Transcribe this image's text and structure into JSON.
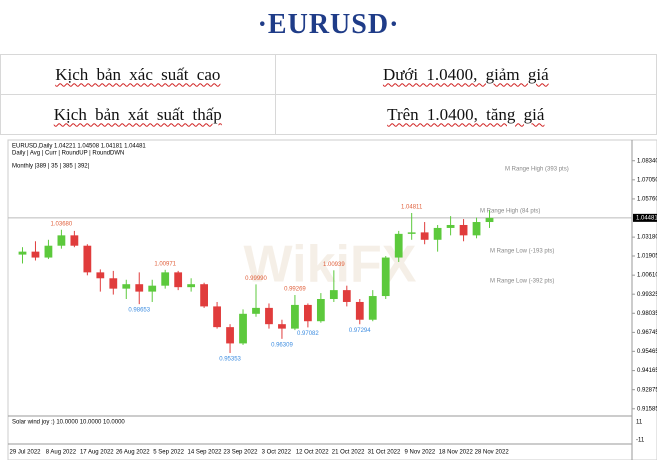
{
  "header": {
    "title": "·EURUSD·"
  },
  "table": {
    "rows": [
      [
        "Kịch bản xác suất cao",
        "Dưới 1.0400, giảm giá"
      ],
      [
        "Kịch bản xát suất thấp",
        "Trên 1.0400, tăng giá"
      ]
    ]
  },
  "chart": {
    "type": "candlestick",
    "info": [
      "EURUSD,Daily  1.04221 1.04508 1.04181 1.04481",
      "Daily | Avg | Curr | RoundUP | RoundDWN",
      "Monthly |389 | 35 | 385 | 392|"
    ],
    "watermark": "WikiFX",
    "indicator_label": "Solar wind joy :) 10.0000 10.0000 10.0000",
    "indicator_ticks": [
      "11",
      "-11"
    ],
    "range_labels": [
      "M Range High (393 pts)",
      "M Range High (84 pts)",
      "M Range Low (-193 pts)",
      "M Range Low (-392 pts)"
    ],
    "x_labels": [
      "29 Jul 2022",
      "8 Aug 2022",
      "17 Aug 2022",
      "26 Aug 2022",
      "5 Sep 2022",
      "14 Sep 2022",
      "23 Sep 2022",
      "3 Oct 2022",
      "12 Oct 2022",
      "21 Oct 2022",
      "31 Oct 2022",
      "9 Nov 2022",
      "18 Nov 2022",
      "28 Nov 2022"
    ],
    "ylim": [
      0.913,
      1.092
    ],
    "yticks": [
      {
        "value": 1.0834,
        "label": "1.08340"
      },
      {
        "value": 1.0705,
        "label": "1.07050"
      },
      {
        "value": 1.0576,
        "label": "1.05760"
      },
      {
        "value": 1.0318,
        "label": "1.03180"
      },
      {
        "value": 1.01905,
        "label": "1.01905"
      },
      {
        "value": 1.0061,
        "label": "1.00610"
      },
      {
        "value": 0.99325,
        "label": "0.99325"
      },
      {
        "value": 0.98035,
        "label": "0.98035"
      },
      {
        "value": 0.96745,
        "label": "0.96745"
      },
      {
        "value": 0.95465,
        "label": "0.95465"
      },
      {
        "value": 0.94165,
        "label": "0.94165"
      },
      {
        "value": 0.92875,
        "label": "0.92875"
      },
      {
        "value": 0.91585,
        "label": "0.91585"
      }
    ],
    "current_price": {
      "value": 1.04481,
      "label": "1.04481"
    },
    "swing_labels": [
      "1.03680",
      "0.98653",
      "1.00971",
      "0.95353",
      "0.99990",
      "0.96309",
      "0.99269",
      "0.97082",
      "1.00939",
      "0.97294",
      "1.04811"
    ],
    "up_color": "#5cc93c",
    "down_color": "#e03c3c",
    "candles": [
      [
        1.02,
        1.025,
        1.014,
        1.022
      ],
      [
        1.022,
        1.029,
        1.016,
        1.018
      ],
      [
        1.018,
        1.03,
        1.017,
        1.026
      ],
      [
        1.026,
        1.0368,
        1.024,
        1.033
      ],
      [
        1.033,
        1.036,
        1.025,
        1.026
      ],
      [
        1.026,
        1.027,
        1.006,
        1.008
      ],
      [
        1.008,
        1.01,
        0.995,
        1.004
      ],
      [
        1.004,
        1.009,
        0.993,
        0.997
      ],
      [
        0.997,
        1.003,
        0.99,
        1.0
      ],
      [
        1.0,
        1.008,
        0.98653,
        0.995
      ],
      [
        0.995,
        1.003,
        0.988,
        0.999
      ],
      [
        0.999,
        1.00971,
        0.997,
        1.008
      ],
      [
        1.008,
        1.009,
        0.996,
        0.998
      ],
      [
        0.998,
        1.004,
        0.995,
        1.0
      ],
      [
        1.0,
        1.001,
        0.984,
        0.985
      ],
      [
        0.985,
        0.988,
        0.97,
        0.971
      ],
      [
        0.971,
        0.973,
        0.95353,
        0.96
      ],
      [
        0.96,
        0.983,
        0.959,
        0.98
      ],
      [
        0.98,
        0.9999,
        0.978,
        0.984
      ],
      [
        0.984,
        0.987,
        0.97,
        0.973
      ],
      [
        0.973,
        0.976,
        0.96309,
        0.97
      ],
      [
        0.97,
        0.99269,
        0.969,
        0.986
      ],
      [
        0.986,
        0.987,
        0.97082,
        0.975
      ],
      [
        0.975,
        0.994,
        0.974,
        0.99
      ],
      [
        0.99,
        1.00939,
        0.988,
        0.996
      ],
      [
        0.996,
        0.999,
        0.985,
        0.988
      ],
      [
        0.988,
        0.99,
        0.97294,
        0.976
      ],
      [
        0.976,
        0.996,
        0.975,
        0.992
      ],
      [
        0.992,
        1.019,
        0.99,
        1.018
      ],
      [
        1.018,
        1.036,
        1.015,
        1.034
      ],
      [
        1.034,
        1.04811,
        1.03,
        1.035
      ],
      [
        1.035,
        1.042,
        1.027,
        1.03
      ],
      [
        1.03,
        1.04,
        1.022,
        1.038
      ],
      [
        1.038,
        1.046,
        1.033,
        1.04
      ],
      [
        1.04,
        1.044,
        1.029,
        1.033
      ],
      [
        1.033,
        1.045,
        1.031,
        1.042
      ],
      [
        1.042,
        1.05,
        1.038,
        1.0448
      ]
    ]
  }
}
